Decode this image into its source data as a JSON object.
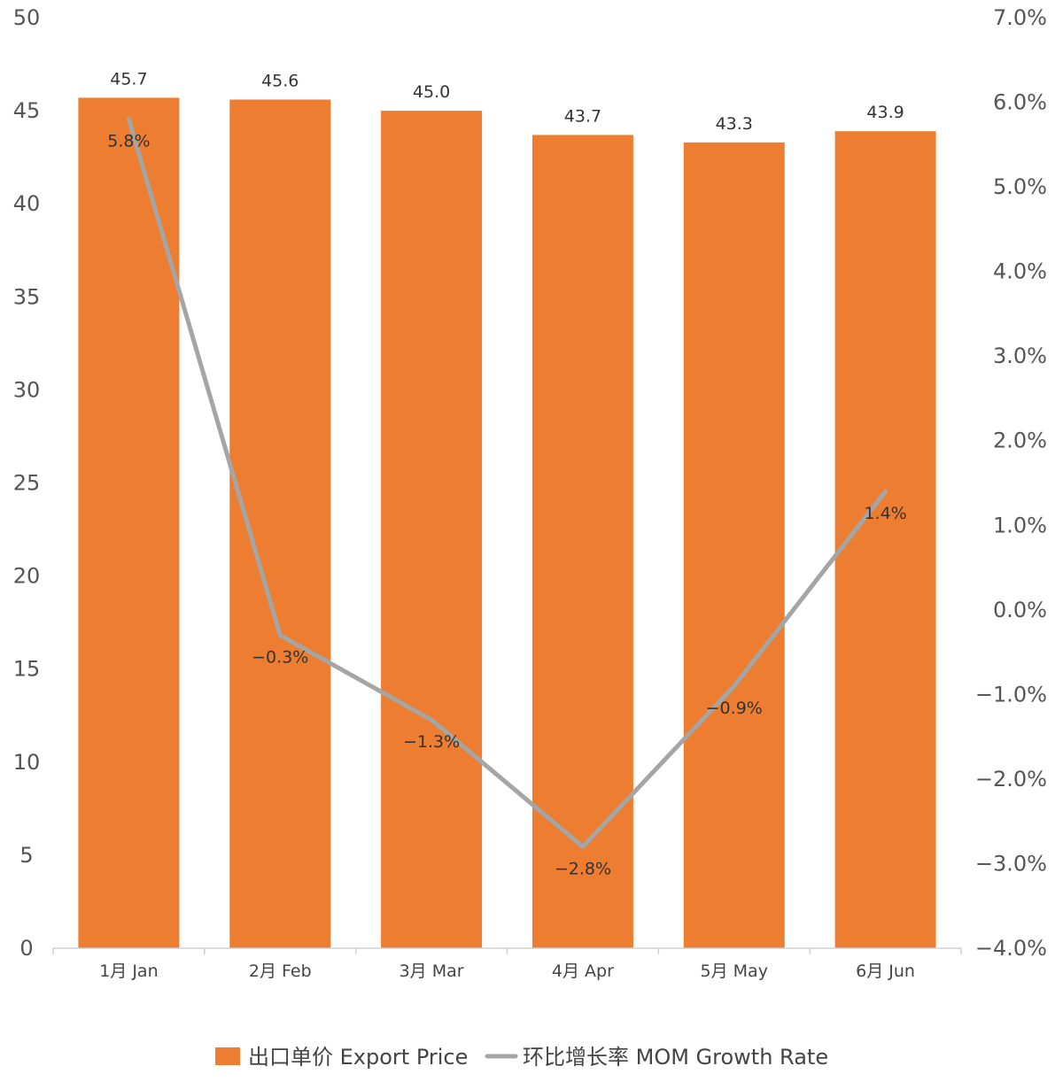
{
  "chart_data": {
    "type": "bar",
    "categories": [
      "1月 Jan",
      "2月 Feb",
      "3月 Mar",
      "4月 Apr",
      "5月 May",
      "6月 Jun"
    ],
    "series": [
      {
        "name": "出口单价 Export Price",
        "type": "bar",
        "axis": "left",
        "color": "#ED7D31",
        "values": [
          45.7,
          45.6,
          45.0,
          43.7,
          43.3,
          43.9
        ],
        "labels": [
          "45.7",
          "45.6",
          "45.0",
          "43.7",
          "43.3",
          "43.9"
        ]
      },
      {
        "name": "环比增长率 MOM Growth Rate",
        "type": "line",
        "axis": "right",
        "color": "#A5A5A5",
        "values": [
          5.8,
          -0.3,
          -1.3,
          -2.8,
          -0.9,
          1.4
        ],
        "labels": [
          "5.8%",
          "−0.3%",
          "−1.3%",
          "−2.8%",
          "−0.9%",
          "1.4%"
        ]
      }
    ],
    "y_left": {
      "min": 0,
      "max": 50,
      "ticks": [
        0,
        5,
        10,
        15,
        20,
        25,
        30,
        35,
        40,
        45,
        50
      ],
      "tick_labels": [
        "0",
        "5",
        "10",
        "15",
        "20",
        "25",
        "30",
        "35",
        "40",
        "45",
        "50"
      ]
    },
    "y_right": {
      "min": -4.0,
      "max": 7.0,
      "ticks": [
        -4,
        -3,
        -2,
        -1,
        0,
        1,
        2,
        3,
        4,
        5,
        6,
        7
      ],
      "tick_labels": [
        "−4.0%",
        "−3.0%",
        "−2.0%",
        "−1.0%",
        "0.0%",
        "1.0%",
        "2.0%",
        "3.0%",
        "4.0%",
        "5.0%",
        "6.0%",
        "7.0%"
      ]
    },
    "grid": false,
    "legend_position": "bottom"
  }
}
